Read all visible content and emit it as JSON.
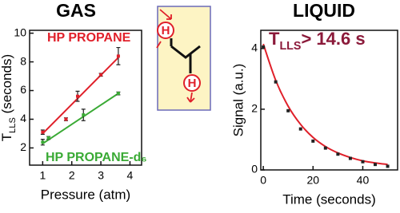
{
  "chart_data": [
    {
      "type": "scatter",
      "title": "GAS",
      "ylabel": [
        "T",
        "LLS",
        " (seconds)"
      ],
      "xlabel": "Pressure (atm)",
      "xlim": [
        0.55,
        4.4
      ],
      "ylim": [
        0.8,
        10.2
      ],
      "xticks": [
        1,
        2,
        3,
        4
      ],
      "yticks": [
        2,
        4,
        6,
        8,
        10
      ],
      "series": [
        {
          "name": "HP PROPANE",
          "color": "#e0202a",
          "x": [
            1.0,
            1.8,
            2.2,
            3.0,
            3.6
          ],
          "values": [
            3.1,
            4.0,
            5.6,
            7.1,
            8.4
          ],
          "errors": [
            0.15,
            0.1,
            0.35,
            0.1,
            0.6
          ],
          "fit_x": [
            1.0,
            3.6
          ],
          "fit_values": [
            3.0,
            8.3
          ]
        },
        {
          "name": "HP PROPANE-d₆",
          "color": "#3aaa35",
          "x": [
            1.0,
            1.2,
            2.4,
            3.6
          ],
          "values": [
            2.4,
            2.7,
            4.3,
            5.8
          ],
          "errors": [
            0.2,
            0.1,
            0.4,
            0.1
          ],
          "fit_x": [
            1.0,
            3.6
          ],
          "fit_values": [
            2.3,
            5.8
          ]
        }
      ]
    },
    {
      "type": "scatter",
      "title": "LIQUID",
      "ylabel": "Signal (a.u.)",
      "xlabel": "Time (seconds)",
      "annotation": [
        "T",
        "LLS",
        "> 14.6 s"
      ],
      "xlim": [
        -1,
        54
      ],
      "ylim": [
        0,
        4.6
      ],
      "xticks": [
        0,
        20,
        40
      ],
      "yticks": [
        0,
        2,
        4
      ],
      "series": [
        {
          "color": "#222222",
          "x": [
            0,
            5,
            10,
            15,
            20,
            25,
            30,
            35,
            40,
            45,
            50
          ],
          "values": [
            4.05,
            2.9,
            1.95,
            1.35,
            0.95,
            0.72,
            0.52,
            0.38,
            0.27,
            0.18,
            0.12
          ],
          "fit_color": "#e0202a",
          "fit_x": [
            0,
            5,
            10,
            15,
            20,
            25,
            30,
            35,
            40,
            45,
            50
          ],
          "fit_values": [
            4.15,
            2.95,
            2.1,
            1.5,
            1.07,
            0.77,
            0.56,
            0.41,
            0.3,
            0.23,
            0.18
          ]
        }
      ]
    }
  ],
  "diagram": {
    "atoms": [
      "H",
      "H"
    ]
  }
}
